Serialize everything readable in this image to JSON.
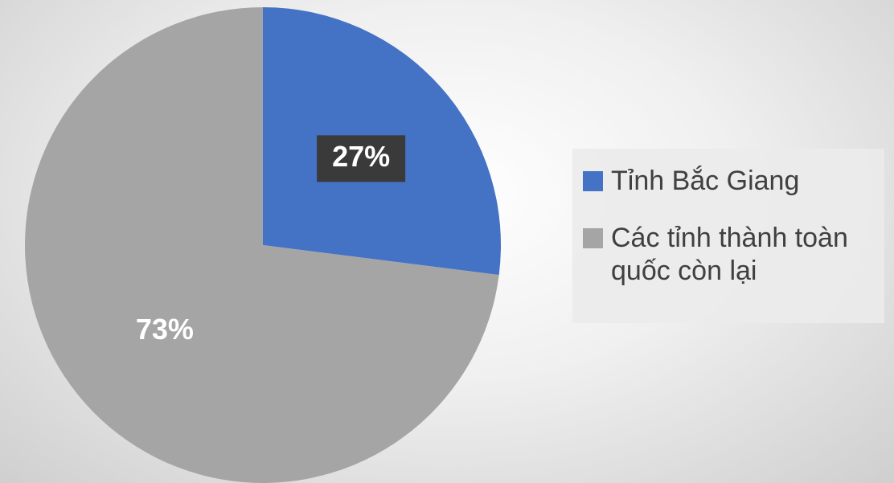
{
  "chart_data": {
    "type": "pie",
    "categories": [
      "Tỉnh Bắc Giang",
      "Các tỉnh thành toàn quốc còn lại"
    ],
    "values": [
      27,
      73
    ],
    "value_labels": [
      "27%",
      "73%"
    ],
    "colors": [
      "#4472c4",
      "#a5a5a5"
    ],
    "legend": "right"
  }
}
